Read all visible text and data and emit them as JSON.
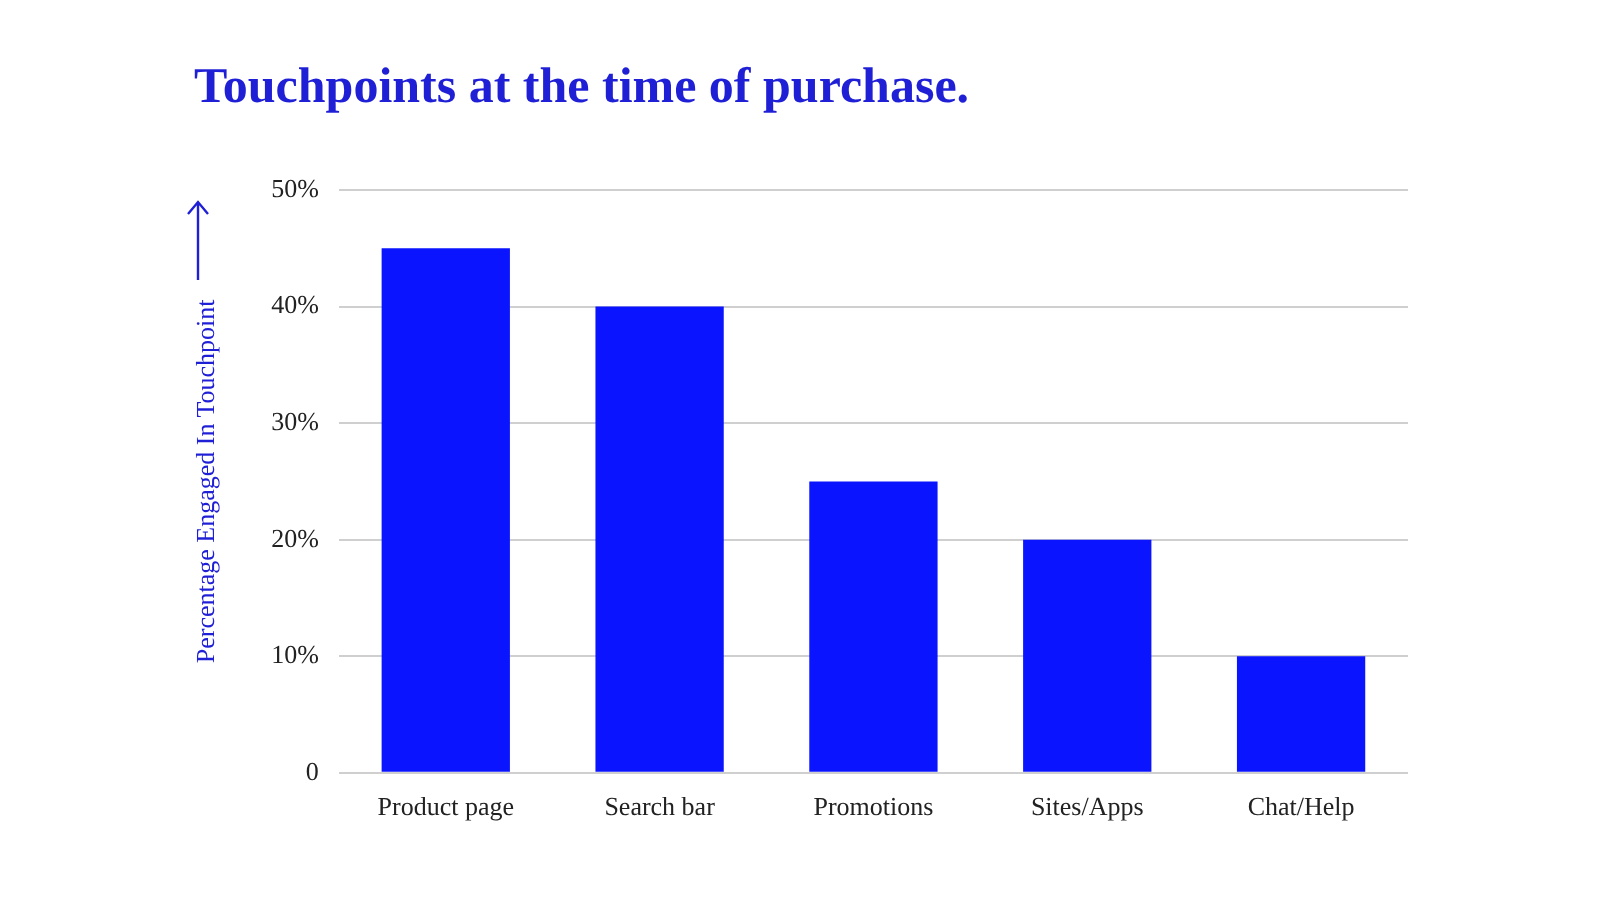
{
  "chart_data": {
    "type": "bar",
    "title": "Touchpoints at the time of purchase.",
    "ylabel": "Percentage Engaged In Touchpoint",
    "categories": [
      "Product page",
      "Search bar",
      "Promotions",
      "Sites/Apps",
      "Chat/Help"
    ],
    "values": [
      45,
      40,
      25,
      20,
      10
    ],
    "color": "#0a14ff",
    "ylim": [
      0,
      50
    ],
    "yticks": [
      0,
      {
        "value": 10,
        "label": "10%"
      },
      {
        "value": 20,
        "label": "20%"
      },
      {
        "value": 30,
        "label": "30%"
      },
      {
        "value": 40,
        "label": "40%"
      },
      {
        "value": 50,
        "label": "50%"
      }
    ],
    "grid": "y",
    "legend": false
  }
}
